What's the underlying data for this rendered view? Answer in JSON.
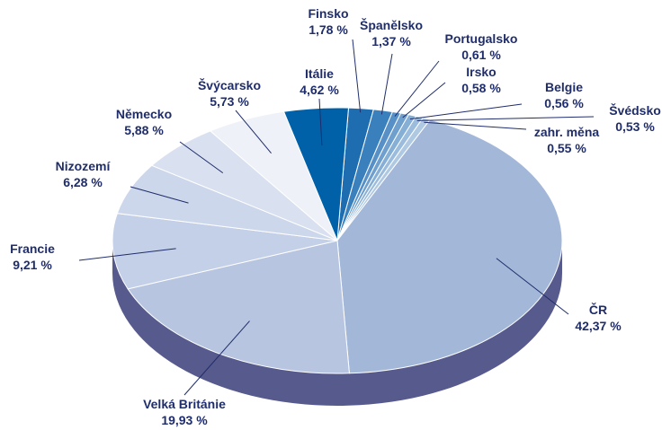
{
  "chart_data": {
    "type": "pie",
    "categories": [
      "Finsko",
      "Španělsko",
      "Portugalsko",
      "Irsko",
      "Belgie",
      "Švédsko",
      "zahr. měna",
      "ČR",
      "Velká Británie",
      "Francie",
      "Nizozemí",
      "Německo",
      "Švýcarsko",
      "Itálie"
    ],
    "values": [
      1.78,
      1.37,
      0.61,
      0.58,
      0.56,
      0.53,
      0.55,
      42.37,
      19.93,
      9.21,
      6.28,
      5.88,
      5.73,
      4.62
    ],
    "value_labels": [
      "1,78 %",
      "1,37 %",
      "0,61 %",
      "0,58 %",
      "0,56 %",
      "0,53 %",
      "0,55 %",
      "42,37 %",
      "19,93 %",
      "9,21 %",
      "6,28 %",
      "5,88 %",
      "5,73 %",
      "4,62 %"
    ],
    "colors": [
      "#1d6db0",
      "#3a80bd",
      "#5690c6",
      "#6f9fcd",
      "#86afd5",
      "#9bbcdc",
      "#b0c9e3",
      "#a3b8d8",
      "#b7c5e0",
      "#c4d0e7",
      "#cdd7eb",
      "#d9e0ef",
      "#eff1f8",
      "#0061a9"
    ]
  }
}
